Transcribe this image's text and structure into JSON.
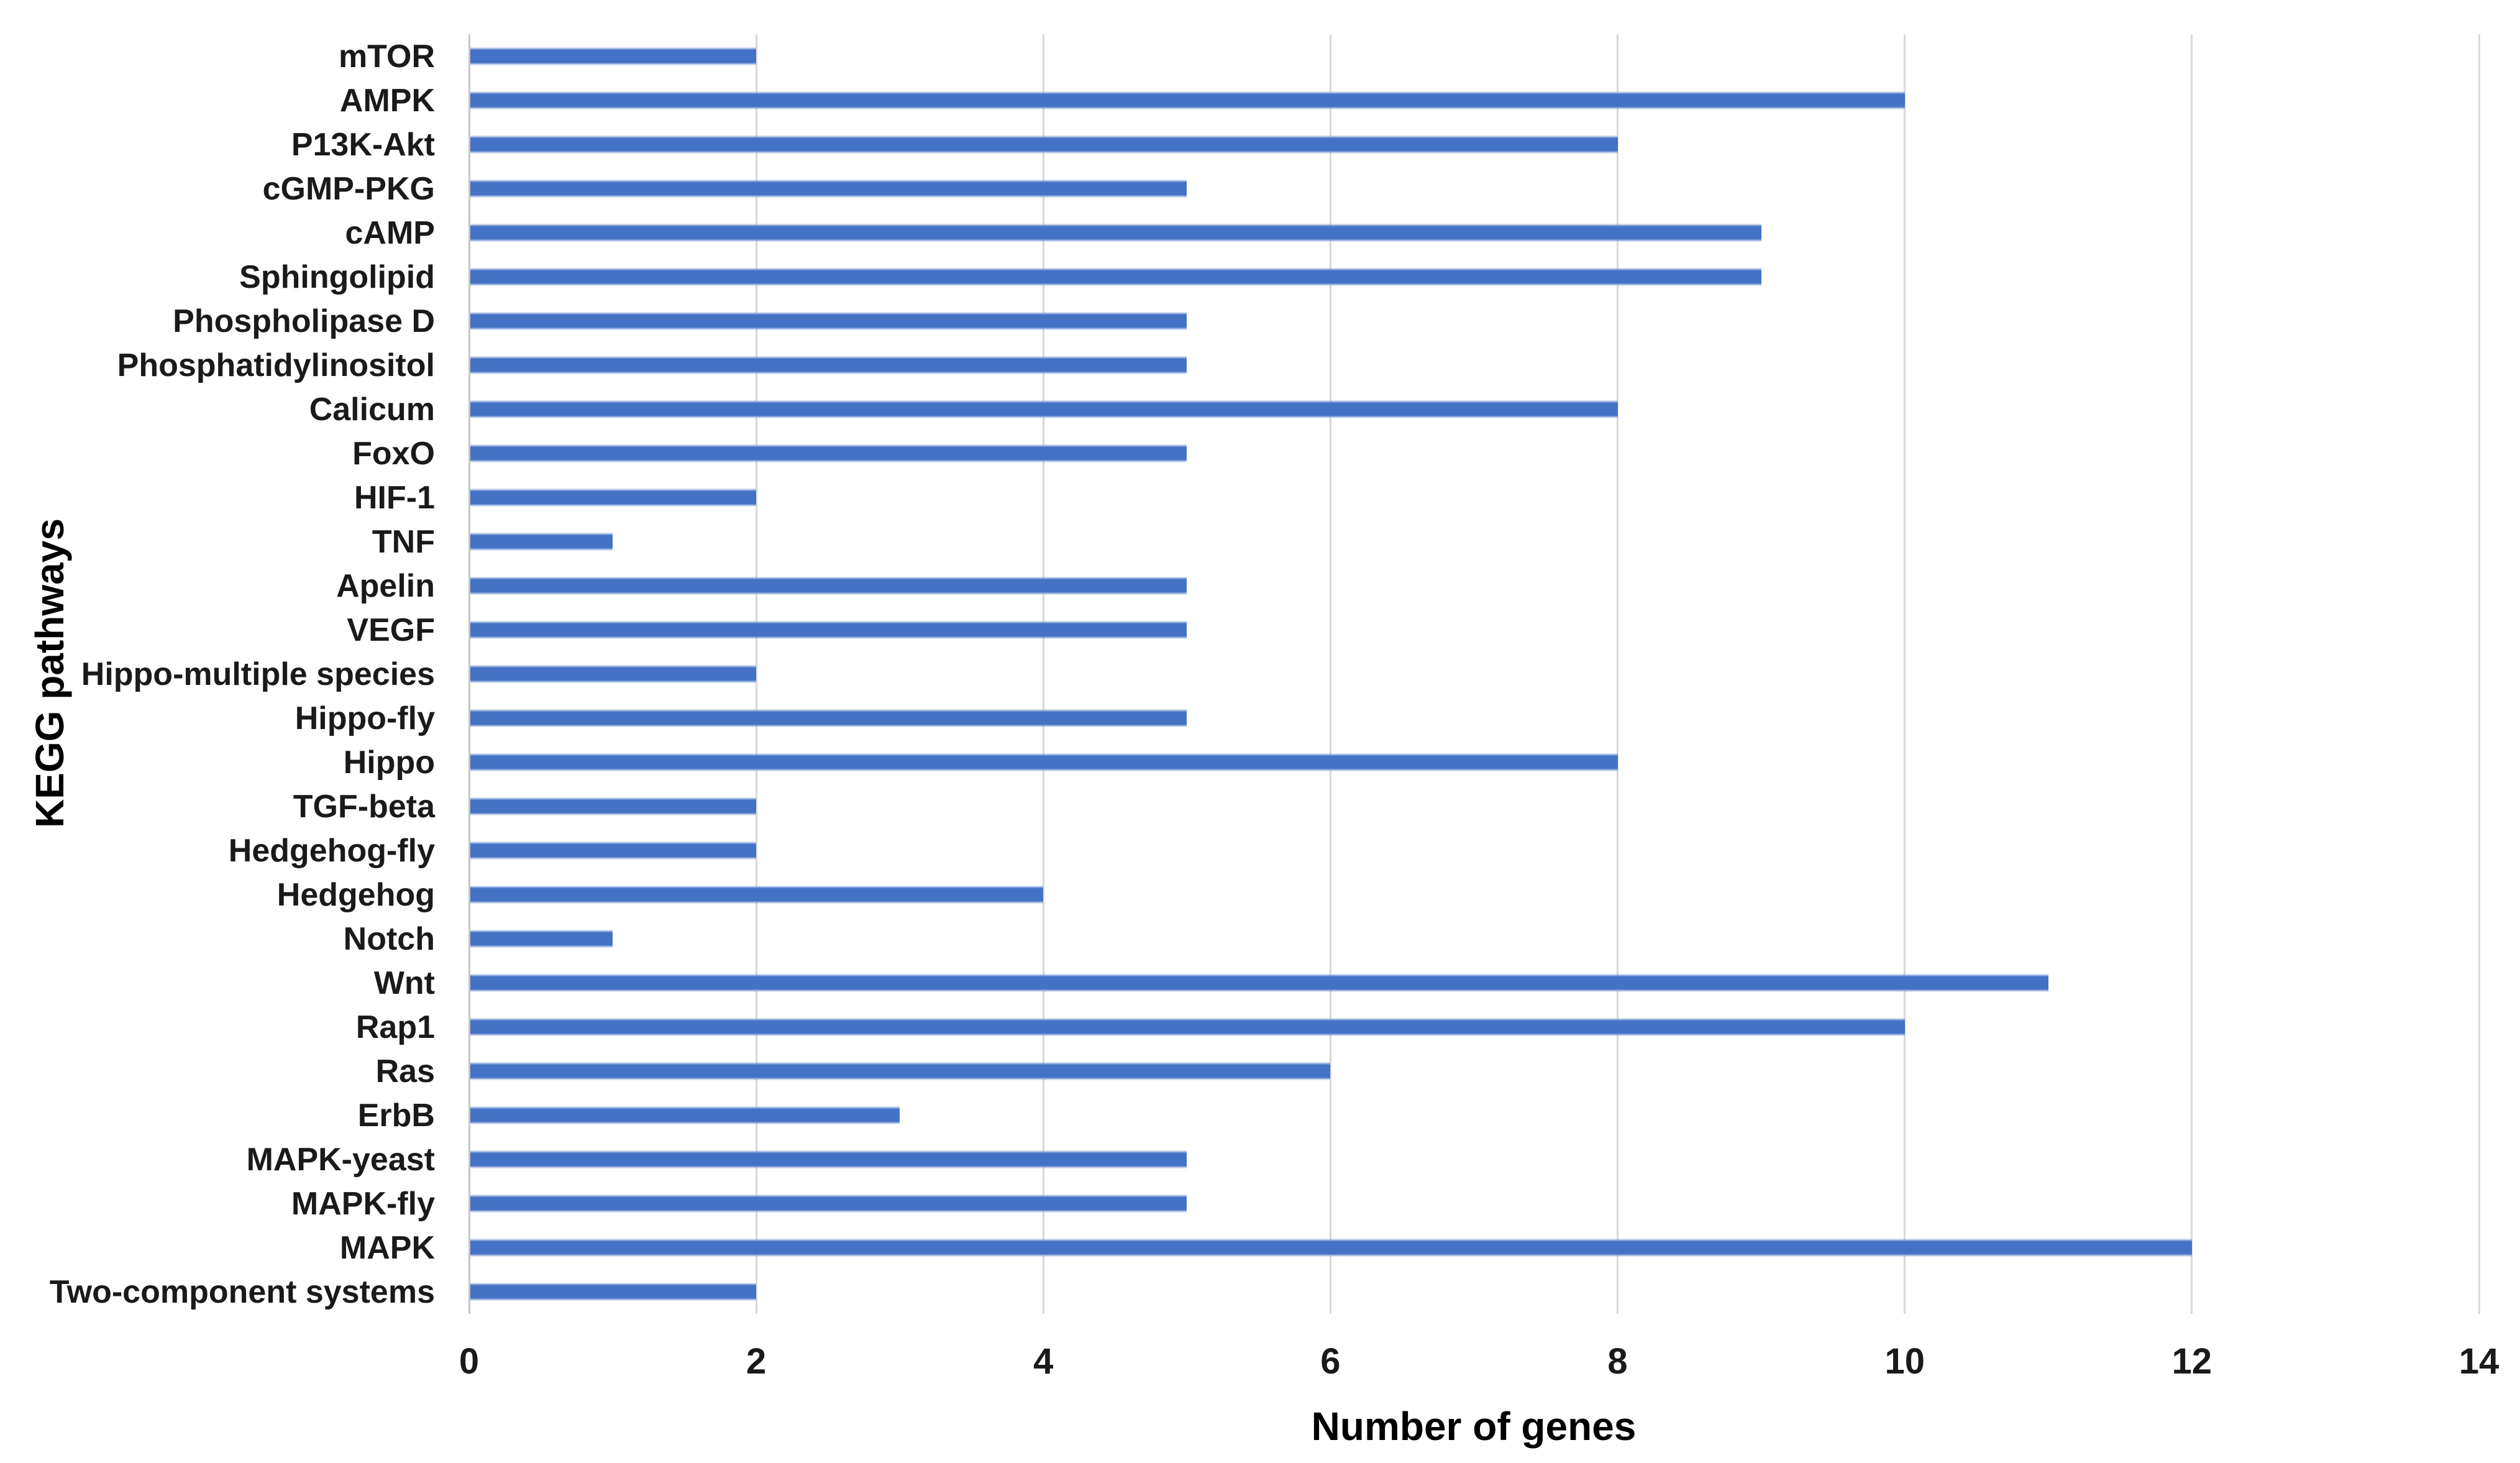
{
  "figure": {
    "background": "#ffffff",
    "x_axis_title": "Number of genes",
    "y_axis_title": "KEGG pathways"
  },
  "chart_data": {
    "type": "bar",
    "orientation": "horizontal",
    "title": "",
    "xlabel": "Number of genes",
    "ylabel": "KEGG pathways",
    "categories": [
      "mTOR",
      "AMPK",
      "P13K-Akt",
      "cGMP-PKG",
      "cAMP",
      "Sphingolipid",
      "Phospholipase D",
      "Phosphatidylinositol",
      "Calicum",
      "FoxO",
      "HIF-1",
      "TNF",
      "Apelin",
      "VEGF",
      "Hippo-multiple species",
      "Hippo-fly",
      "Hippo",
      "TGF-beta",
      "Hedgehog-fly",
      "Hedgehog",
      "Notch",
      "Wnt",
      "Rap1",
      "Ras",
      "ErbB",
      "MAPK-yeast",
      "MAPK-fly",
      "MAPK",
      "Two-component systems"
    ],
    "values": [
      2,
      10,
      8,
      5,
      9,
      9,
      5,
      5,
      8,
      5,
      2,
      1,
      5,
      5,
      2,
      5,
      8,
      2,
      2,
      4,
      1,
      11,
      10,
      6,
      3,
      5,
      5,
      12,
      2
    ],
    "xlim": [
      0,
      14
    ],
    "xticks": [
      0,
      2,
      4,
      6,
      8,
      10,
      12,
      14
    ],
    "grid": "vertical-only",
    "legend": "none",
    "bar_color": "#4472C4",
    "gridline_color": "#D9D9D9",
    "axis_line_color": "#C6C6C6",
    "text_color": "#1a1a1a"
  }
}
